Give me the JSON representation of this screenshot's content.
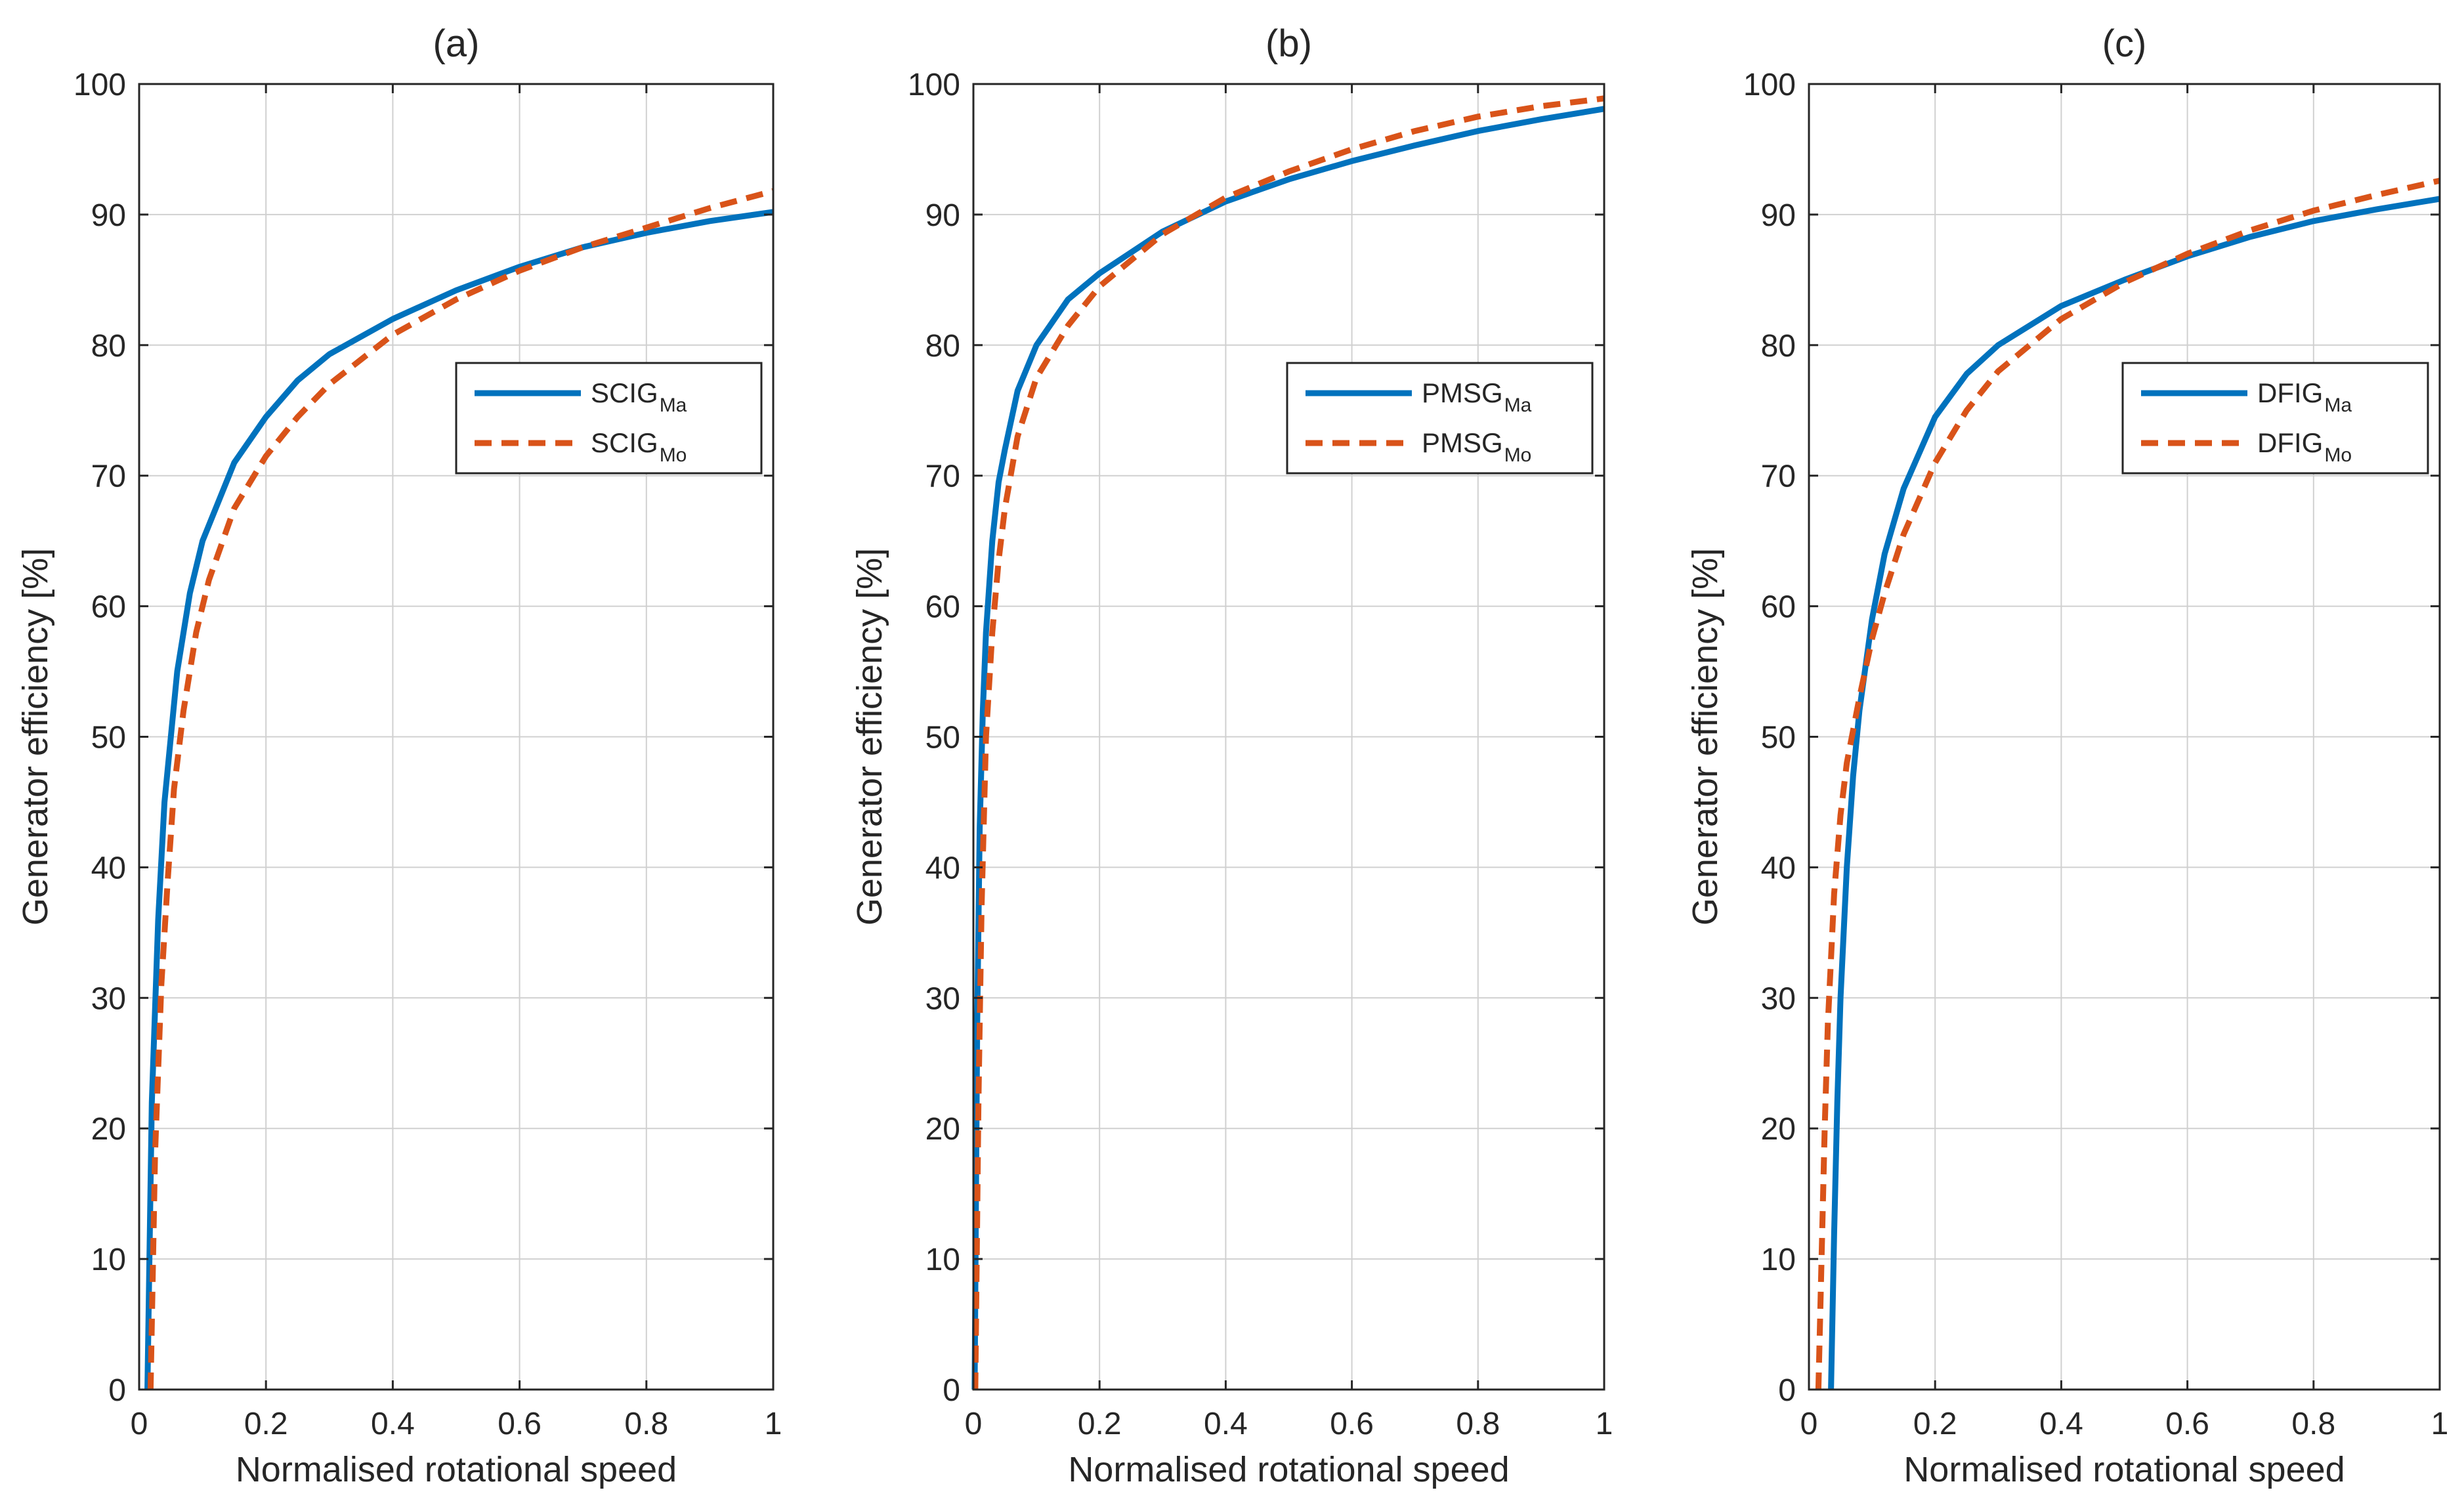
{
  "colors": {
    "ma": "#0072BD",
    "mo": "#D95319",
    "grid": "#d0d0d0",
    "axis": "#262626"
  },
  "chart_data": [
    {
      "type": "line",
      "title": "(a)",
      "xlabel": "Normalised rotational speed",
      "ylabel": "Generator efficiency [%]",
      "xlim": [
        0,
        1
      ],
      "ylim": [
        0,
        100
      ],
      "xticks": [
        0,
        0.2,
        0.4,
        0.6,
        0.8,
        1
      ],
      "xtick_labels": [
        "0",
        "0.2",
        "0.4",
        "0.6",
        "0.8",
        "1"
      ],
      "yticks": [
        0,
        10,
        20,
        30,
        40,
        50,
        60,
        70,
        80,
        90,
        100
      ],
      "ytick_labels": [
        "0",
        "10",
        "20",
        "30",
        "40",
        "50",
        "60",
        "70",
        "80",
        "90",
        "100"
      ],
      "grid": true,
      "legend_position": "upper-right",
      "series": [
        {
          "name": "SCIG",
          "subscript": "Ma",
          "style": "solid",
          "x": [
            0.013,
            0.02,
            0.03,
            0.04,
            0.05,
            0.06,
            0.08,
            0.1,
            0.15,
            0.2,
            0.25,
            0.3,
            0.4,
            0.5,
            0.6,
            0.7,
            0.8,
            0.9,
            1.0
          ],
          "y": [
            0,
            22,
            36,
            45,
            50,
            55,
            61,
            65,
            71,
            74.5,
            77.3,
            79.3,
            82,
            84.2,
            86,
            87.5,
            88.6,
            89.5,
            90.2
          ]
        },
        {
          "name": "SCIG",
          "subscript": "Mo",
          "style": "dashed",
          "x": [
            0.018,
            0.025,
            0.035,
            0.045,
            0.055,
            0.07,
            0.09,
            0.11,
            0.15,
            0.2,
            0.25,
            0.3,
            0.4,
            0.5,
            0.6,
            0.7,
            0.8,
            0.9,
            1.0
          ],
          "y": [
            0,
            18,
            31,
            39,
            46,
            52,
            58,
            62,
            67.5,
            71.5,
            74.5,
            77,
            80.8,
            83.5,
            85.7,
            87.5,
            89,
            90.5,
            91.8
          ]
        }
      ]
    },
    {
      "type": "line",
      "title": "(b)",
      "xlabel": "Normalised rotational speed",
      "ylabel": "Generator efficiency [%]",
      "xlim": [
        0,
        1
      ],
      "ylim": [
        0,
        100
      ],
      "xticks": [
        0,
        0.2,
        0.4,
        0.6,
        0.8,
        1
      ],
      "xtick_labels": [
        "0",
        "0.2",
        "0.4",
        "0.6",
        "0.8",
        "1"
      ],
      "yticks": [
        0,
        10,
        20,
        30,
        40,
        50,
        60,
        70,
        80,
        90,
        100
      ],
      "ytick_labels": [
        "0",
        "10",
        "20",
        "30",
        "40",
        "50",
        "60",
        "70",
        "80",
        "90",
        "100"
      ],
      "grid": true,
      "legend_position": "upper-right",
      "series": [
        {
          "name": "PMSG",
          "subscript": "Ma",
          "style": "solid",
          "x": [
            0.002,
            0.006,
            0.01,
            0.015,
            0.02,
            0.03,
            0.04,
            0.05,
            0.07,
            0.1,
            0.15,
            0.2,
            0.3,
            0.4,
            0.5,
            0.6,
            0.7,
            0.8,
            0.9,
            1.0
          ],
          "y": [
            0,
            28,
            43,
            52,
            58,
            65,
            69.5,
            72,
            76.5,
            80,
            83.5,
            85.5,
            88.7,
            91,
            92.7,
            94.1,
            95.3,
            96.4,
            97.3,
            98.1
          ]
        },
        {
          "name": "PMSG",
          "subscript": "Mo",
          "style": "dashed",
          "x": [
            0.003,
            0.008,
            0.013,
            0.02,
            0.03,
            0.04,
            0.05,
            0.07,
            0.1,
            0.15,
            0.2,
            0.3,
            0.4,
            0.5,
            0.6,
            0.7,
            0.8,
            0.9,
            1.0
          ],
          "y": [
            0,
            22,
            37,
            50,
            58,
            63.5,
            67.5,
            73,
            77.5,
            81.5,
            84.5,
            88.5,
            91.3,
            93.3,
            95,
            96.4,
            97.5,
            98.3,
            98.9
          ]
        }
      ]
    },
    {
      "type": "line",
      "title": "(c)",
      "xlabel": "Normalised rotational speed",
      "ylabel": "Generator efficiency [%]",
      "xlim": [
        0,
        1
      ],
      "ylim": [
        0,
        100
      ],
      "xticks": [
        0,
        0.2,
        0.4,
        0.6,
        0.8,
        1
      ],
      "xtick_labels": [
        "0",
        "0.2",
        "0.4",
        "0.6",
        "0.8",
        "1"
      ],
      "yticks": [
        0,
        10,
        20,
        30,
        40,
        50,
        60,
        70,
        80,
        90,
        100
      ],
      "ytick_labels": [
        "0",
        "10",
        "20",
        "30",
        "40",
        "50",
        "60",
        "70",
        "80",
        "90",
        "100"
      ],
      "grid": true,
      "legend_position": "upper-right",
      "series": [
        {
          "name": "DFIG",
          "subscript": "Ma",
          "style": "solid",
          "x": [
            0.035,
            0.04,
            0.045,
            0.05,
            0.06,
            0.07,
            0.08,
            0.1,
            0.12,
            0.15,
            0.2,
            0.25,
            0.3,
            0.4,
            0.5,
            0.6,
            0.7,
            0.8,
            0.9,
            1.0
          ],
          "y": [
            0,
            12,
            22,
            30,
            40,
            47,
            52,
            59,
            64,
            69,
            74.5,
            77.8,
            80,
            83,
            85,
            86.8,
            88.3,
            89.5,
            90.4,
            91.2
          ]
        },
        {
          "name": "DFIG",
          "subscript": "Mo",
          "style": "dashed",
          "x": [
            0.015,
            0.02,
            0.025,
            0.03,
            0.04,
            0.05,
            0.06,
            0.08,
            0.1,
            0.12,
            0.15,
            0.2,
            0.25,
            0.3,
            0.4,
            0.5,
            0.6,
            0.7,
            0.8,
            0.9,
            1.0
          ],
          "y": [
            0,
            10,
            20,
            28,
            38,
            44,
            48,
            53,
            57.5,
            61,
            65.5,
            71,
            75,
            78,
            82,
            84.8,
            87,
            88.8,
            90.3,
            91.5,
            92.6
          ]
        }
      ]
    }
  ]
}
